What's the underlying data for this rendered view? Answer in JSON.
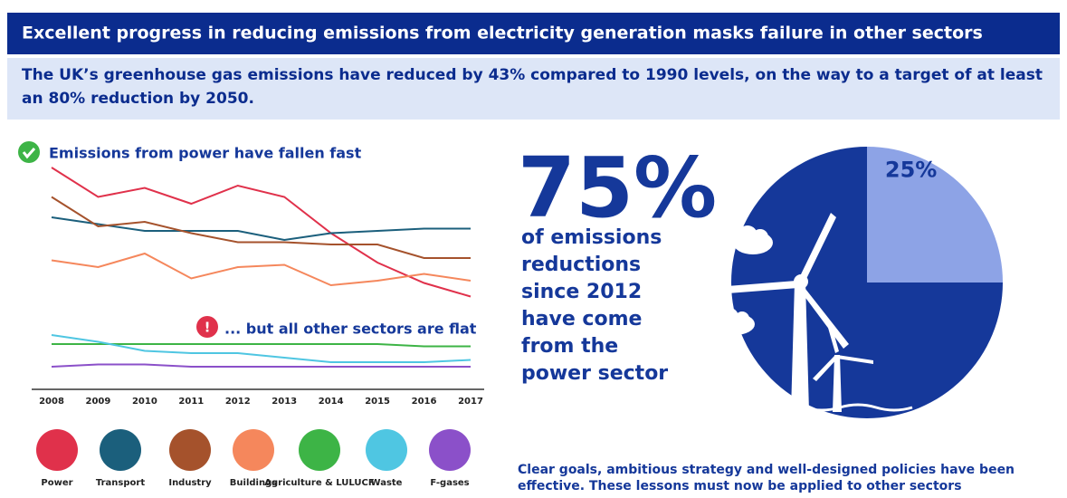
{
  "header": {
    "title": "Excellent progress in reducing emissions from electricity generation masks failure in other sectors",
    "subtitle": "The UK’s greenhouse gas emissions have reduced by 43% compared to 1990 levels, on the way to a target of at least an 80% reduction by 2050."
  },
  "chart_data": [
    {
      "type": "line",
      "title": "Emissions from power have fallen fast",
      "annotation": "... but all other sectors are flat",
      "categories": [
        "2008",
        "2009",
        "2010",
        "2011",
        "2012",
        "2013",
        "2014",
        "2015",
        "2016",
        "2017"
      ],
      "ylim": [
        0,
        100
      ],
      "series": [
        {
          "name": "Power",
          "color": "#e0314b",
          "values": [
            98,
            85,
            89,
            82,
            90,
            85,
            69,
            56,
            47,
            41
          ]
        },
        {
          "name": "Transport",
          "color": "#1b5f7c",
          "values": [
            76,
            73,
            70,
            70,
            70,
            66,
            69,
            70,
            71,
            71
          ]
        },
        {
          "name": "Industry",
          "color": "#a5522c",
          "values": [
            85,
            72,
            74,
            69,
            65,
            65,
            64,
            64,
            58,
            58
          ]
        },
        {
          "name": "Buildings",
          "color": "#f5875c",
          "values": [
            57,
            54,
            60,
            49,
            54,
            55,
            46,
            48,
            51,
            48
          ]
        },
        {
          "name": "Agriculture & LULUCF",
          "color": "#3db446",
          "values": [
            20,
            20,
            20,
            20,
            20,
            20,
            20,
            20,
            19,
            19
          ]
        },
        {
          "name": "Waste",
          "color": "#4fc6e2",
          "values": [
            24,
            21,
            17,
            16,
            16,
            14,
            12,
            12,
            12,
            13
          ]
        },
        {
          "name": "F-gases",
          "color": "#8b50c9",
          "values": [
            10,
            11,
            11,
            10,
            10,
            10,
            10,
            10,
            10,
            10
          ]
        }
      ]
    },
    {
      "type": "pie",
      "values": [
        75,
        25
      ],
      "value_labels": [
        "75%",
        "25%"
      ],
      "colors": [
        "#15389a",
        "#8da3e6"
      ],
      "caption": "of emissions reductions since 2012 have come from the power sector"
    }
  ],
  "footer": "Clear goals, ambitious strategy and well-designed policies have been effective. These lessons must now be applied to other sectors"
}
